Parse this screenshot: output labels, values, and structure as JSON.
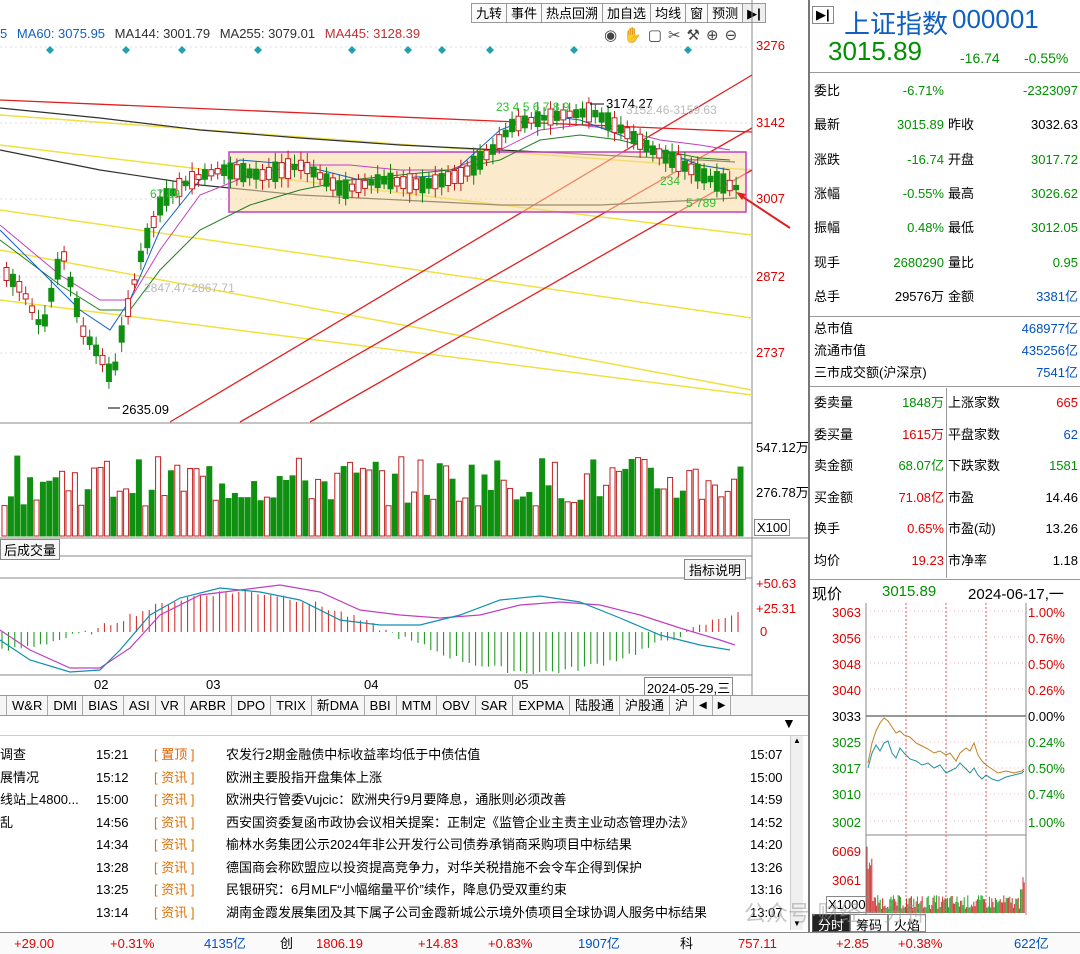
{
  "toolbar": {
    "buttons": [
      "九转",
      "事件",
      "热点回溯",
      "加自选",
      "均线",
      "窗",
      "预测"
    ],
    "nav_arrow": "▶|"
  },
  "ma_legend": {
    "items": [
      {
        "label": "MA60: 3075.95",
        "color": "#1060c0"
      },
      {
        "label": "MA144: 3001.79",
        "color": "#303030"
      },
      {
        "label": "MA255: 3079.01",
        "color": "#303030"
      },
      {
        "label": "MA445: 3128.39",
        "color": "#c03030"
      }
    ]
  },
  "price_axis": [
    "3276",
    "3142",
    "3007",
    "2872",
    "2737"
  ],
  "annotations": {
    "high": "3174.27",
    "low": "2635.09",
    "channel_top": "3152.46-3159.63",
    "channel_mid": "2847.47-2867.71",
    "nine_count_a": "23 4 5 6 7 8 9",
    "nine_count_b": "67 89",
    "nine_count_c": "234",
    "nine_count_d": "5 789"
  },
  "volume_axis": [
    "547.12万",
    "276.78万",
    "X100"
  ],
  "volume_label": "后成交量",
  "indicator_help": "指标说明",
  "macd_axis": [
    "+50.63",
    "+25.31",
    "0"
  ],
  "x_axis": [
    "02",
    "03",
    "04",
    "05",
    "2024-05-29,三"
  ],
  "indicator_tabs": [
    "W&R",
    "DMI",
    "BIAS",
    "ASI",
    "VR",
    "ARBR",
    "DPO",
    "TRIX",
    "新DMA",
    "BBI",
    "MTM",
    "OBV",
    "SAR",
    "EXPMA",
    "陆股通",
    "沪股通",
    "沪"
  ],
  "news": [
    {
      "left": "调查",
      "time": "15:21",
      "tag": "置顶",
      "title": "农发行2期金融债中标收益率均低于中债估值",
      "time2": "15:07"
    },
    {
      "left": "展情况",
      "time": "15:12",
      "tag": "资讯",
      "title": "欧洲主要股指开盘集体上涨",
      "time2": "15:00"
    },
    {
      "left": "线站上4800...",
      "time": "15:00",
      "tag": "资讯",
      "title": "欧洲央行管委Vujcic：欧洲央行9月要降息，通胀则必须改善",
      "time2": "14:59"
    },
    {
      "left": "乱",
      "time": "14:56",
      "tag": "资讯",
      "title": "西安国资委复函市政协会议相关提案：正制定《监管企业主责主业动态管理办法》",
      "time2": "14:52"
    },
    {
      "left": "",
      "time": "14:34",
      "tag": "资讯",
      "title": "榆林水务集团公示2024年非公开发行公司债券承销商采购项目中标结果",
      "time2": "14:20"
    },
    {
      "left": "",
      "time": "13:28",
      "tag": "资讯",
      "title": "德国商会称欧盟应以投资提高竞争力，对华关税措施不会令车企得到保护",
      "time2": "13:26"
    },
    {
      "left": "",
      "time": "13:25",
      "tag": "资讯",
      "title": "民银研究：6月MLF“小幅缩量平价”续作，降息仍受双重约束",
      "time2": "13:16"
    },
    {
      "left": "",
      "time": "13:14",
      "tag": "资讯",
      "title": "湖南金霞发展集团及其下属子公司金霞新城公示境外债项目全球协调人服务中标结果",
      "time2": "13:07"
    }
  ],
  "quote": {
    "title": "上证指数",
    "code": "000001",
    "price": "3015.89",
    "change": "-16.74",
    "change_pct": "-0.55%",
    "rows": [
      {
        "l": "委比",
        "lv": "-6.71%",
        "lc": "grn",
        "r": "",
        "rv": "-2323097",
        "rc": "grn"
      },
      {
        "l": "最新",
        "lv": "3015.89",
        "lc": "grn",
        "r": "昨收",
        "rv": "3032.63",
        "rc": "blk"
      },
      {
        "l": "涨跌",
        "lv": "-16.74",
        "lc": "grn",
        "r": "开盘",
        "rv": "3017.72",
        "rc": "grn"
      },
      {
        "l": "涨幅",
        "lv": "-0.55%",
        "lc": "grn",
        "r": "最高",
        "rv": "3026.62",
        "rc": "grn"
      },
      {
        "l": "振幅",
        "lv": "0.48%",
        "lc": "grn",
        "r": "最低",
        "rv": "3012.05",
        "rc": "grn"
      },
      {
        "l": "现手",
        "lv": "2680290",
        "lc": "grn",
        "r": "量比",
        "rv": "0.95",
        "rc": "grn"
      },
      {
        "l": "总手",
        "lv": "29576万",
        "lc": "blk",
        "r": "金额",
        "rv": "3381亿",
        "rc": "blu"
      }
    ],
    "caps": [
      {
        "l": "总市值",
        "v": "468977亿"
      },
      {
        "l": "流通市值",
        "v": "435256亿"
      },
      {
        "l": "三市成交额(沪深京)",
        "v": "7541亿"
      }
    ],
    "rows2": [
      {
        "l": "委卖量",
        "lv": "1848万",
        "lc": "grn",
        "r": "上涨家数",
        "rv": "665",
        "rc": "red"
      },
      {
        "l": "委买量",
        "lv": "1615万",
        "lc": "red",
        "r": "平盘家数",
        "rv": "62",
        "rc": "blu"
      },
      {
        "l": "卖金额",
        "lv": "68.07亿",
        "lc": "grn",
        "r": "下跌家数",
        "rv": "1581",
        "rc": "grn"
      },
      {
        "l": "买金额",
        "lv": "71.08亿",
        "lc": "red",
        "r": "市盈",
        "rv": "14.46",
        "rc": "blk"
      },
      {
        "l": "换手",
        "lv": "0.65%",
        "lc": "red",
        "r": "市盈(动)",
        "rv": "13.26",
        "rc": "blk"
      },
      {
        "l": "均价",
        "lv": "19.23",
        "lc": "red",
        "r": "市净率",
        "rv": "1.18",
        "rc": "blk"
      }
    ]
  },
  "intraday": {
    "label": "现价",
    "price": "3015.89",
    "date": "2024-06-17,一",
    "left_axis": [
      "3063",
      "3056",
      "3048",
      "3040",
      "3033",
      "3025",
      "3017",
      "3010",
      "3002"
    ],
    "right_axis": [
      "1.00%",
      "0.76%",
      "0.50%",
      "0.26%",
      "0.00%",
      "0.24%",
      "0.50%",
      "0.74%",
      "1.00%"
    ],
    "vol_axis": [
      "6069",
      "3061",
      "X1000"
    ],
    "tabs": [
      "分时",
      "筹码",
      "火焰"
    ]
  },
  "bottom_bar": [
    {
      "v": "+29.00",
      "c": "red"
    },
    {
      "v": "+0.31%",
      "c": "red"
    },
    {
      "v": "4135亿",
      "c": "blu"
    },
    {
      "v": "创",
      "c": "blk"
    },
    {
      "v": "1806.19",
      "c": "red"
    },
    {
      "v": "+14.83",
      "c": "red"
    },
    {
      "v": "+0.83%",
      "c": "red"
    },
    {
      "v": "1907亿",
      "c": "blu"
    },
    {
      "v": "科",
      "c": "blk"
    },
    {
      "v": "757.11",
      "c": "red"
    },
    {
      "v": "+2.85",
      "c": "red"
    },
    {
      "v": "+0.38%",
      "c": "red"
    },
    {
      "v": "622亿",
      "c": "blu"
    }
  ],
  "watermark": "公众号·财经一分钟",
  "colors": {
    "up": "#e00000",
    "down": "#009000",
    "accent": "#0050c0"
  }
}
